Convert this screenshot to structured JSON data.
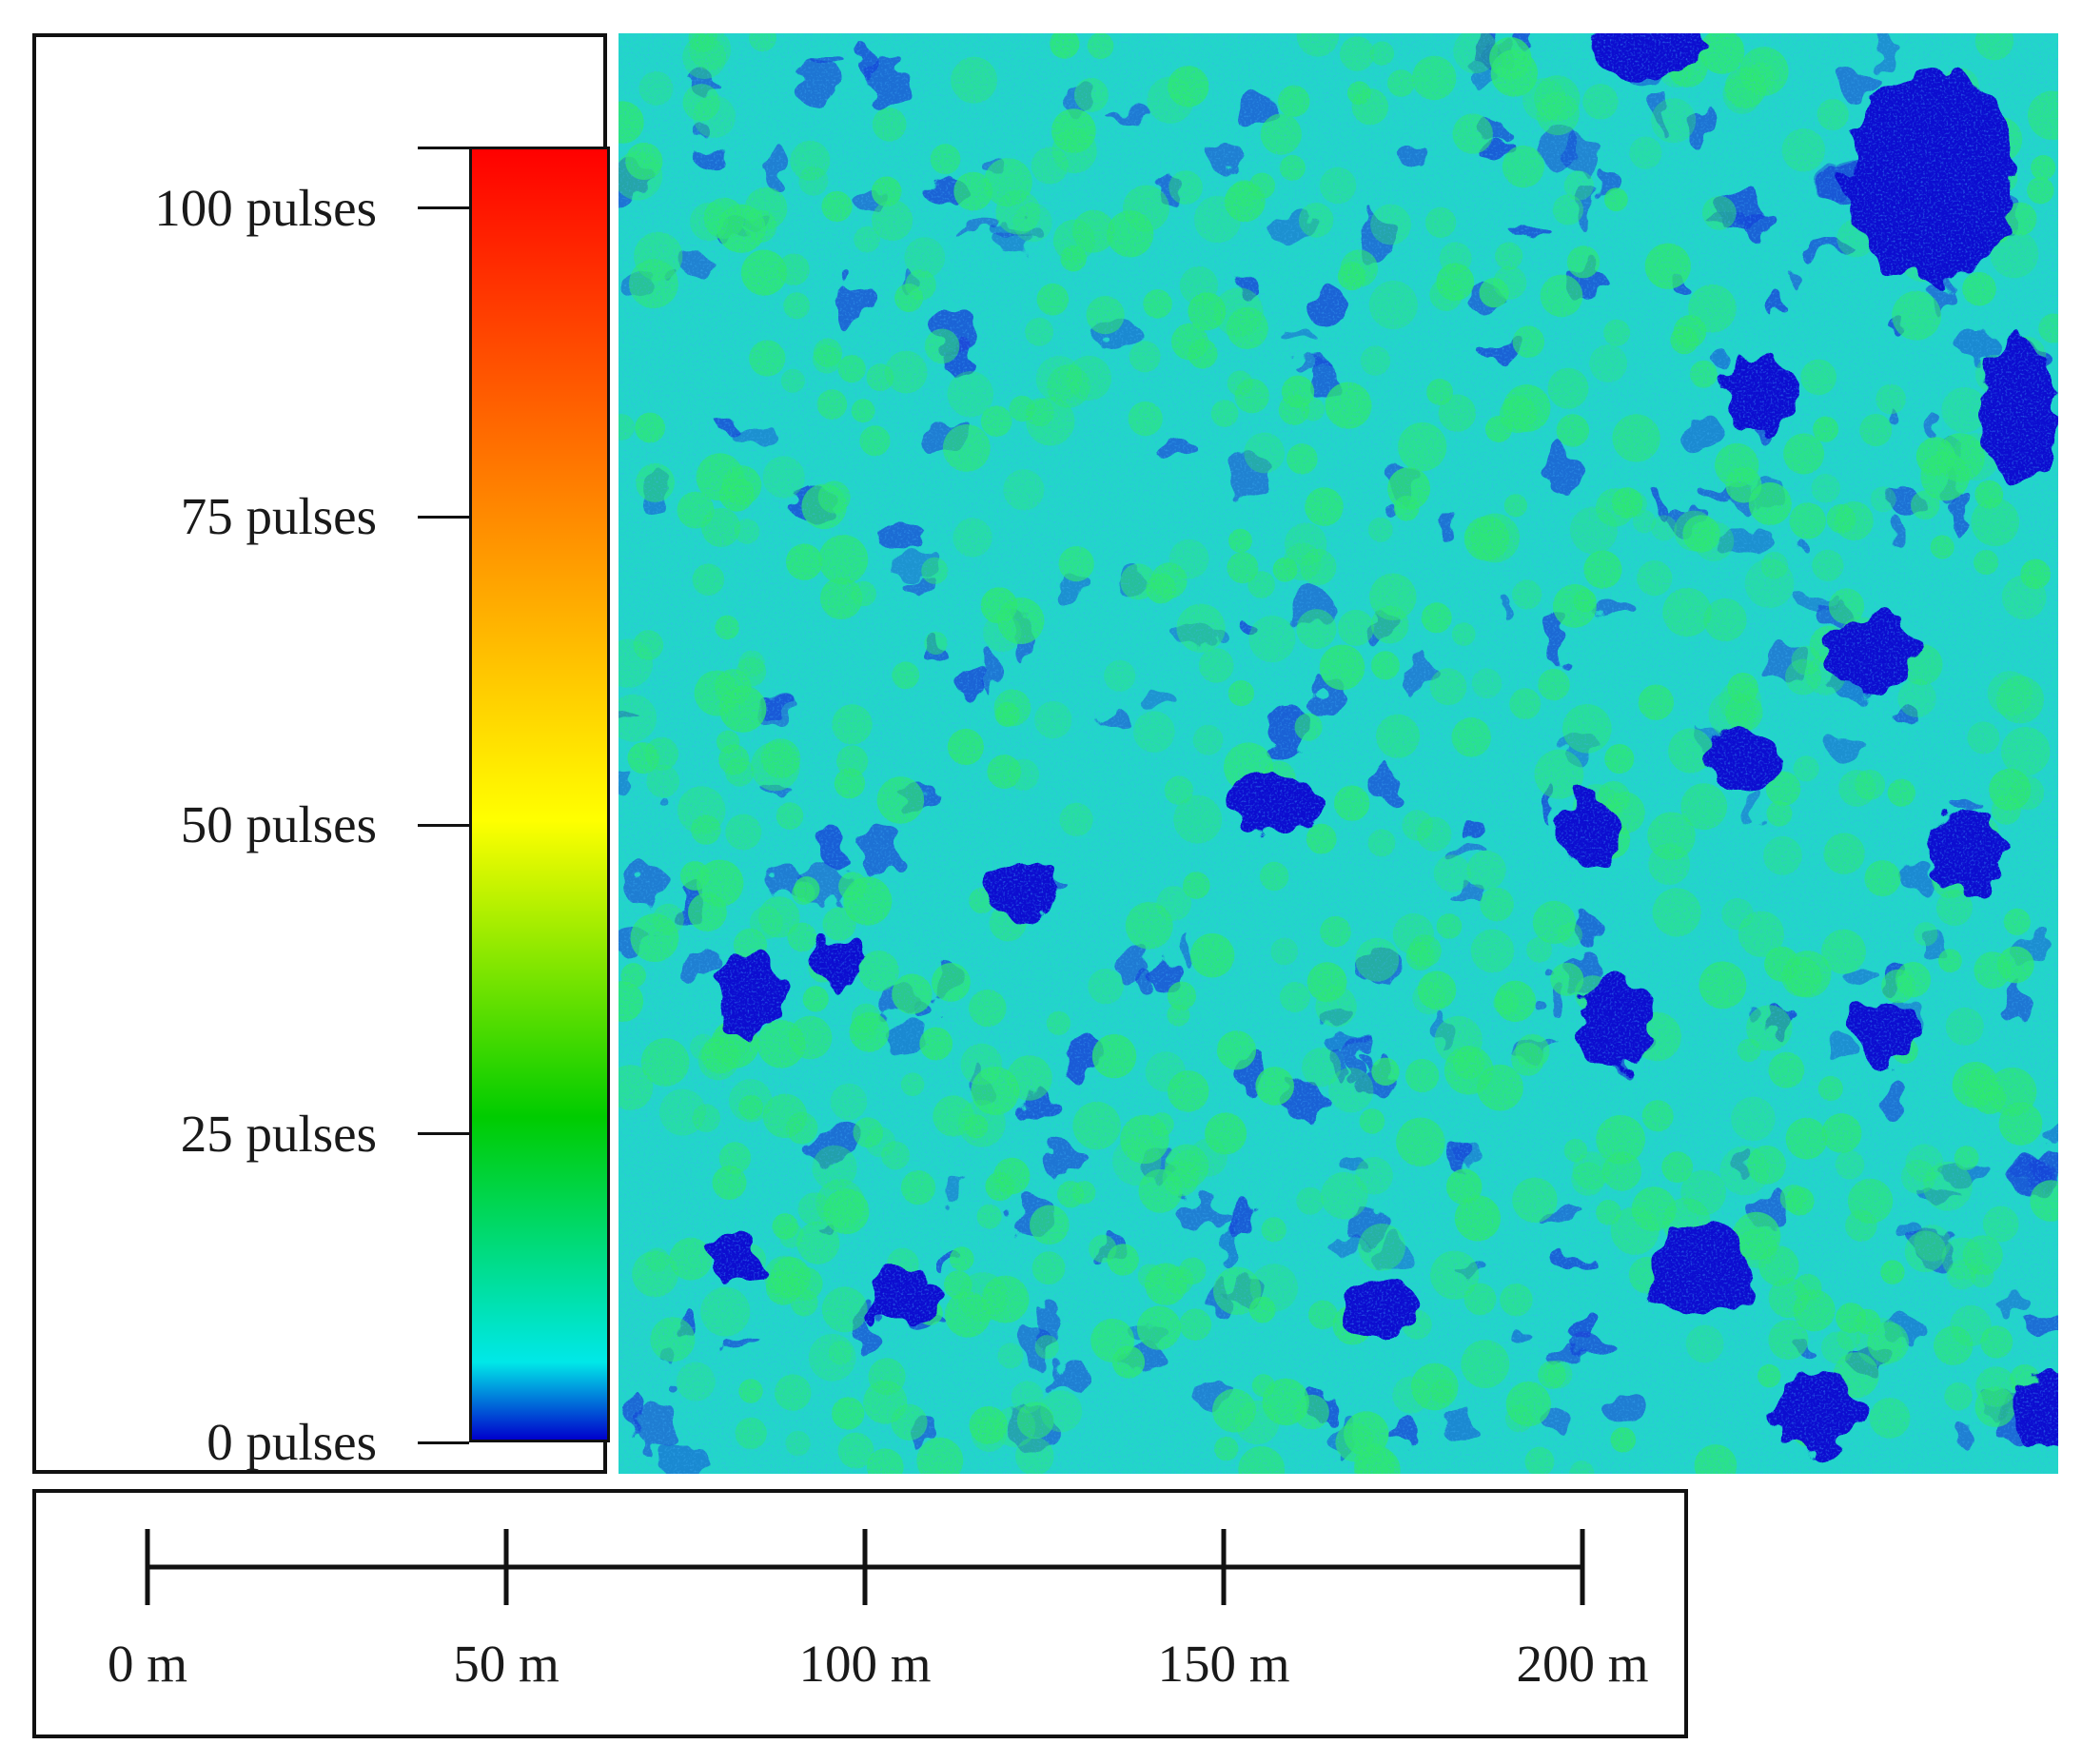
{
  "legend": {
    "ticks": [
      {
        "value": 100,
        "label": "100 pulses"
      },
      {
        "value": 75,
        "label": "75 pulses"
      },
      {
        "value": 50,
        "label": "50 pulses"
      },
      {
        "value": 25,
        "label": "25 pulses"
      },
      {
        "value": 0,
        "label": "0 pulses"
      }
    ],
    "max_value": 105,
    "color_stops": [
      "#0000cc",
      "#00e8e8",
      "#00cc00",
      "#ffff00",
      "#ff8800",
      "#ff0000"
    ]
  },
  "map": {
    "base_color": "#22d6c9",
    "low_color": "#1a46d8",
    "void_color": "#0a0ad0",
    "high_color": "#2ee870"
  },
  "scale_bar": {
    "ticks": [
      {
        "value": 0,
        "label": "0 m"
      },
      {
        "value": 50,
        "label": "50 m"
      },
      {
        "value": 100,
        "label": "100 m"
      },
      {
        "value": 150,
        "label": "150 m"
      },
      {
        "value": 200,
        "label": "200 m"
      }
    ],
    "max_value": 200
  }
}
